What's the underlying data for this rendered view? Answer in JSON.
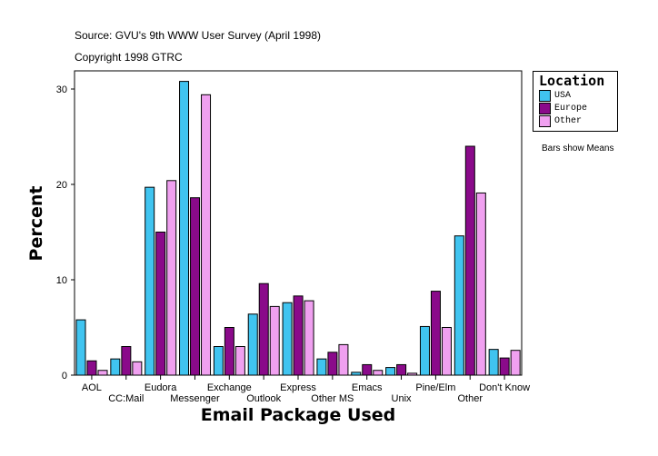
{
  "header": {
    "source": "Source: GVU's 9th WWW User Survey (April 1998)",
    "copyright": "Copyright 1998 GTRC"
  },
  "note": "Bars show Means",
  "chart_data": {
    "type": "bar",
    "xlabel": "Email Package Used",
    "ylabel": "Percent",
    "ylim": [
      0,
      32
    ],
    "yticks": [
      0,
      10,
      20,
      30
    ],
    "grid": false,
    "legend_title": "Location",
    "legend_position": "right",
    "categories": [
      "AOL",
      "CC:Mail",
      "Eudora",
      "Messenger",
      "Exchange",
      "Outlook",
      "Express",
      "Other MS",
      "Emacs",
      "Unix",
      "Pine/Elm",
      "Other",
      "Don't Know"
    ],
    "series": [
      {
        "name": "USA",
        "color": "#40c4f0",
        "values": [
          5.8,
          1.7,
          19.7,
          30.8,
          3.0,
          6.4,
          7.6,
          1.7,
          0.3,
          0.8,
          5.1,
          14.6,
          2.7
        ]
      },
      {
        "name": "Europe",
        "color": "#8a0a8a",
        "values": [
          1.5,
          3.0,
          15.0,
          18.6,
          5.0,
          9.6,
          8.3,
          2.4,
          1.1,
          1.1,
          8.8,
          24.0,
          1.8
        ]
      },
      {
        "name": "Other",
        "color": "#f0a0f0",
        "values": [
          0.5,
          1.4,
          20.4,
          29.4,
          3.0,
          7.2,
          7.8,
          3.2,
          0.5,
          0.2,
          5.0,
          19.1,
          2.6
        ]
      }
    ]
  }
}
